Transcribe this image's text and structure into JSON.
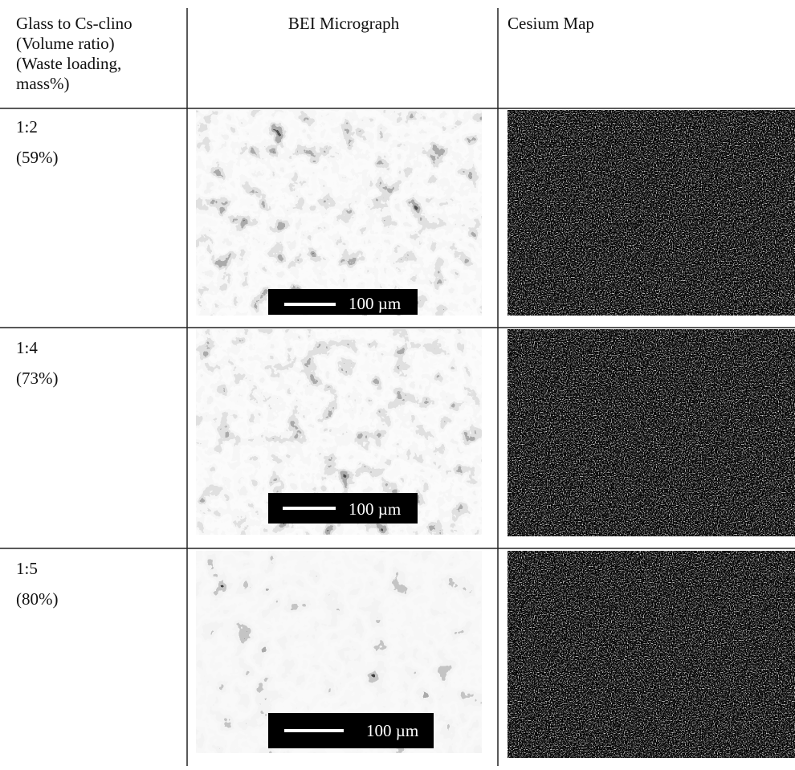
{
  "table": {
    "header": {
      "first_column": [
        "Glass to Cs-clino",
        "(Volume ratio)",
        "(Waste loading,",
        "mass%)"
      ],
      "second_column": "BEI Micrograph",
      "third_column": "Cesium Map"
    },
    "rows": [
      {
        "ratio": "1:2",
        "loading": "(59%)",
        "scale_bar": "100 µm"
      },
      {
        "ratio": "1:4",
        "loading": "(73%)",
        "scale_bar": "100 µm"
      },
      {
        "ratio": "1:5",
        "loading": "(80%)",
        "scale_bar": "100 µm"
      }
    ]
  }
}
